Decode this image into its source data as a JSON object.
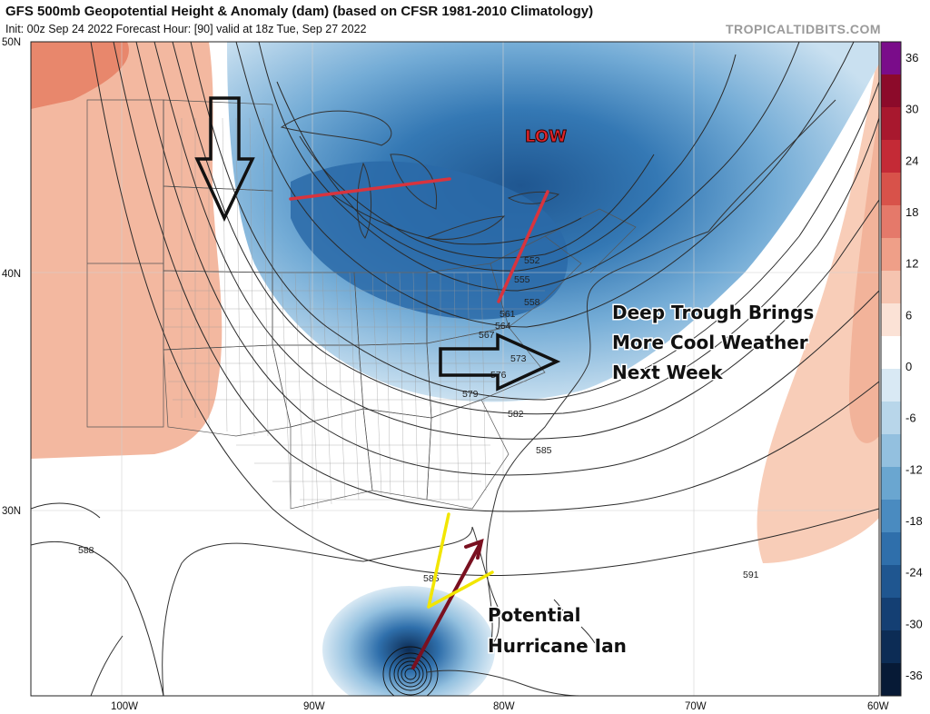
{
  "header": {
    "title": "GFS 500mb Geopotential Height & Anomaly (dam) (based on CFSR 1981-2010 Climatology)",
    "subtitle": "Init: 00z Sep 24 2022   Forecast Hour: [90]   valid at 18z Tue, Sep 27 2022",
    "watermark": "TROPICALTIDBITS.COM"
  },
  "axes": {
    "lat_labels": [
      "50N",
      "40N",
      "30N"
    ],
    "lon_labels": [
      "100W",
      "90W",
      "80W",
      "70W",
      "60W"
    ]
  },
  "colorbar": {
    "labels": [
      "36",
      "30",
      "24",
      "18",
      "12",
      "6",
      "0",
      "-6",
      "-12",
      "-18",
      "-24",
      "-30",
      "-36"
    ],
    "colors": [
      "#7a0c8a",
      "#8c0a2a",
      "#a8182e",
      "#c42a36",
      "#d8524a",
      "#e5796a",
      "#ef9f88",
      "#f6c4b0",
      "#fbe2d6",
      "#ffffff",
      "#d9e9f4",
      "#b8d6ea",
      "#93c0df",
      "#6aa6d0",
      "#4a8bc0",
      "#2f6fab",
      "#1f5690",
      "#143f73",
      "#0c2c55",
      "#071a36"
    ]
  },
  "contour_labels": [
    "552",
    "555",
    "558",
    "561",
    "564",
    "567",
    "573",
    "576",
    "579",
    "582",
    "585",
    "585",
    "588",
    "591"
  ],
  "annotations": {
    "low": "LOW",
    "trough_line1": "Deep Trough Brings",
    "trough_line2": "More Cool Weather",
    "trough_line3": "Next Week",
    "hurricane_line1": "Potential",
    "hurricane_line2": "Hurricane Ian"
  },
  "colors": {
    "warm_anomaly": "#f2b39a",
    "cold_anomaly": "#2f6fab",
    "trough_axis": "#d8343e",
    "arrow_outline": "#111111",
    "track_red": "#7a1020",
    "track_yellow": "#f2e600"
  }
}
